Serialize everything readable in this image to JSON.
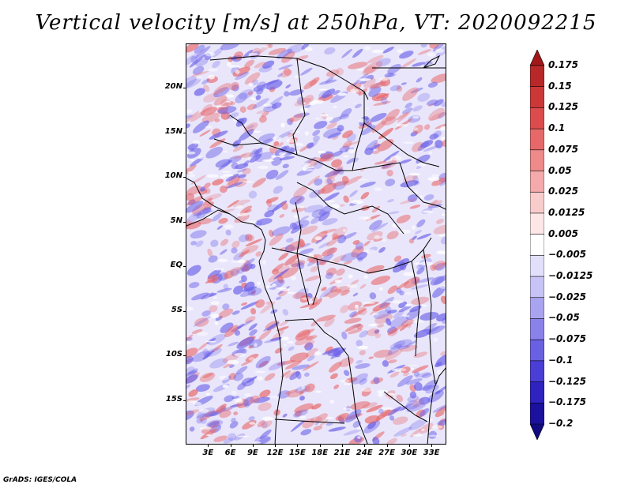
{
  "title": "Vertical velocity [m/s] at 250hPa, VT: 2020092215",
  "credit": "GrADS: IGES/COLA",
  "map": {
    "lat_labels": [
      "20N",
      "15N",
      "10N",
      "5N",
      "EQ",
      "5S",
      "10S",
      "15S"
    ],
    "lon_labels": [
      "3E",
      "6E",
      "9E",
      "12E",
      "15E",
      "18E",
      "21E",
      "24E",
      "27E",
      "30E",
      "33E"
    ],
    "lat_range": [
      -20,
      25
    ],
    "lon_range": [
      0,
      35
    ],
    "field_colors": {
      "negative": "#6a60e8",
      "positive": "#e8686a",
      "neutral": "#ffffff"
    },
    "boundary_color": "#000000"
  },
  "colorbar": {
    "labels": [
      "0.175",
      "0.15",
      "0.125",
      "0.1",
      "0.075",
      "0.05",
      "0.025",
      "0.0125",
      "0.005",
      "−0.005",
      "−0.0125",
      "−0.025",
      "−0.05",
      "−0.075",
      "−0.1",
      "−0.125",
      "−0.175",
      "−0.2"
    ],
    "colors": [
      "#a01818",
      "#b82828",
      "#cc3838",
      "#dc4c4c",
      "#e66868",
      "#ee8a8a",
      "#f4aaaa",
      "#f9cccc",
      "#fce6e6",
      "#ffffff",
      "#e2dffb",
      "#c8c3f6",
      "#aaa4f0",
      "#8a82ea",
      "#6a60e2",
      "#4a3ed6",
      "#2e22c0",
      "#1c109e",
      "#120a80"
    ]
  }
}
